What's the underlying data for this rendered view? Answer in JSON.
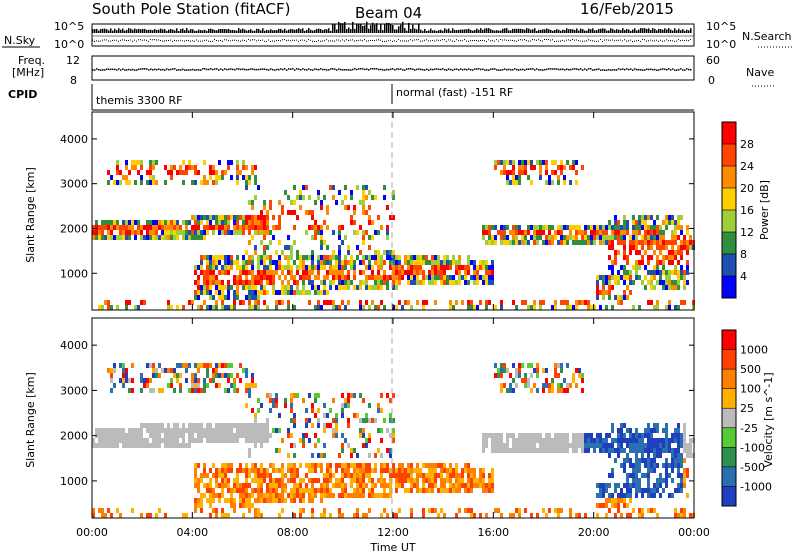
{
  "header": {
    "station": "South Pole Station (fitACF)",
    "beam": "Beam 04",
    "date": "16/Feb/2015"
  },
  "top_panels": {
    "nsky_label": "N.Sky",
    "nsky_ticks": [
      "10^5",
      "10^0"
    ],
    "nsearch_label": "N.Search",
    "nsearch_ticks": [
      "10^5",
      "10^0"
    ],
    "freq_label_1": "Freq.",
    "freq_label_2": "[MHz]",
    "freq_ticks": [
      "12",
      "8"
    ],
    "nave_label": "Nave",
    "nave_ticks": [
      "60",
      "0"
    ],
    "cpid_label": "CPID",
    "cpid_segments": [
      {
        "text": "themis 3300 RF",
        "start_hour": 0
      },
      {
        "text": "normal (fast) -151 RF",
        "start_hour": 12
      }
    ]
  },
  "chart_data": [
    {
      "type": "heatmap",
      "quantity": "power",
      "ylabel": "Slant Range [km]",
      "xlabel": "",
      "x_range_hours": [
        0,
        24
      ],
      "ylim": [
        180,
        4600
      ],
      "yticks": [
        1000,
        2000,
        3000,
        4000
      ],
      "colorbar_label": "Power [dB]",
      "colorbar_ticks": [
        "28",
        "24",
        "20",
        "16",
        "12",
        "8",
        "4"
      ],
      "colors": [
        "#0000ff",
        "#1f4fb0",
        "#2f8f3f",
        "#9ccf3a",
        "#ffcf00",
        "#ff8c00",
        "#ff4500",
        "#ff0000"
      ]
    },
    {
      "type": "heatmap",
      "quantity": "velocity",
      "ylabel": "Slant Range [km]",
      "xlabel": "Time UT",
      "x_range_hours": [
        0,
        24
      ],
      "ylim": [
        180,
        4600
      ],
      "yticks": [
        1000,
        2000,
        3000,
        4000
      ],
      "xticks": [
        "00:00",
        "04:00",
        "08:00",
        "12:00",
        "16:00",
        "20:00",
        "00:00"
      ],
      "colorbar_label": "Velocity [m s^-1]",
      "colorbar_ticks": [
        "1000",
        "500",
        "100",
        "25",
        "-25",
        "-100",
        "-500",
        "-1000"
      ],
      "colors": [
        "#1f3fbf",
        "#2a6faf",
        "#2f8f4f",
        "#55cc33",
        "#bbbbbb",
        "#ffb000",
        "#ff8000",
        "#ff4000",
        "#ff0000"
      ]
    }
  ]
}
